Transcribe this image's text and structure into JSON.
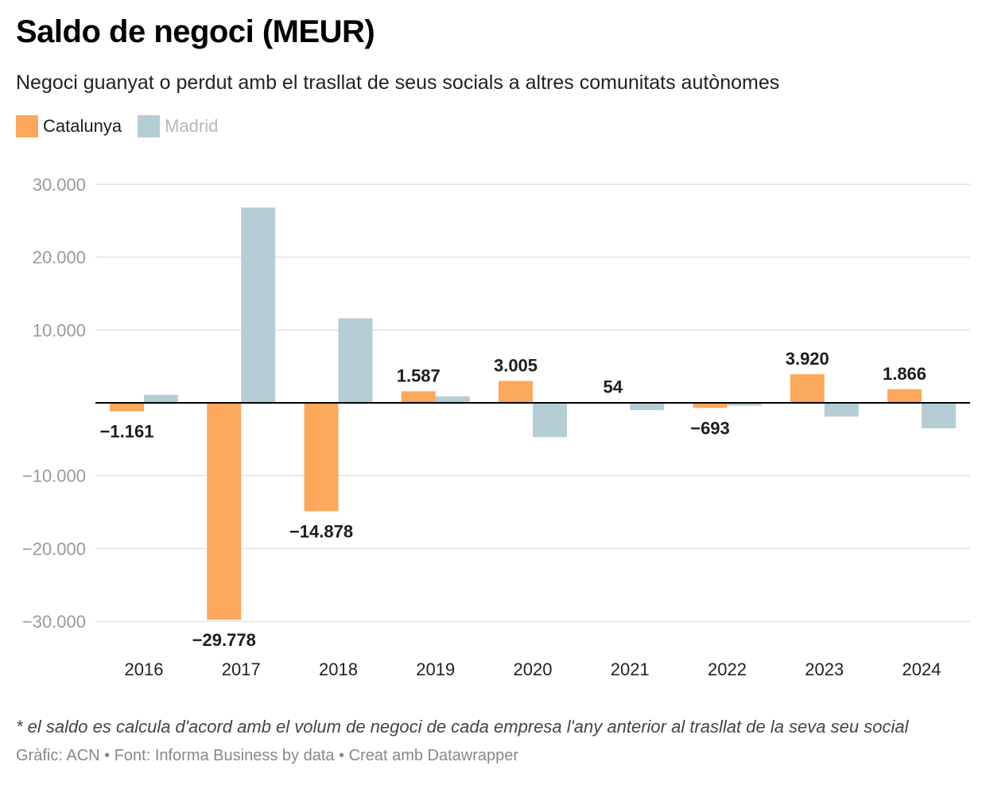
{
  "title": "Saldo de negoci (MEUR)",
  "subtitle": "Negoci guanyat o perdut amb el trasllat de seus socials a altres comunitats autònomes",
  "note": "* el saldo es calcula d'acord amb el volum de negoci de cada empresa l'any anterior al trasllat de la seva seu social",
  "credits": "Gràfic: ACN • Font: Informa Business by data • Creat amb Datawrapper",
  "colors": {
    "catalunya": "#fca85a",
    "madrid": "#b5cdd4",
    "grid": "#e2e2e2",
    "axis": "#000000",
    "tick": "#9a9a9a"
  },
  "chart_data": {
    "type": "bar",
    "title": "Saldo de negoci (MEUR)",
    "xlabel": "",
    "ylabel": "",
    "ylim": [
      -30000,
      30000
    ],
    "yticks": [
      30000,
      20000,
      10000,
      -10000,
      -20000,
      -30000
    ],
    "ytick_labels": [
      "30.000",
      "20.000",
      "10.000",
      "−10.000",
      "−20.000",
      "−30.000"
    ],
    "grid": true,
    "legend_position": "top-left",
    "categories": [
      "2016",
      "2017",
      "2018",
      "2019",
      "2020",
      "2021",
      "2022",
      "2023",
      "2024"
    ],
    "series": [
      {
        "name": "Catalunya",
        "color": "#fca85a",
        "values": [
          -1161,
          -29778,
          -14878,
          1587,
          3005,
          54,
          -693,
          3920,
          1866
        ],
        "labels": [
          "−1.161",
          "−29.778",
          "−14.878",
          "1.587",
          "3.005",
          "54",
          "−693",
          "3.920",
          "1.866"
        ]
      },
      {
        "name": "Madrid",
        "color": "#b5cdd4",
        "values": [
          1100,
          26800,
          11600,
          900,
          -4700,
          -1000,
          -400,
          -1900,
          -3500
        ]
      }
    ]
  }
}
